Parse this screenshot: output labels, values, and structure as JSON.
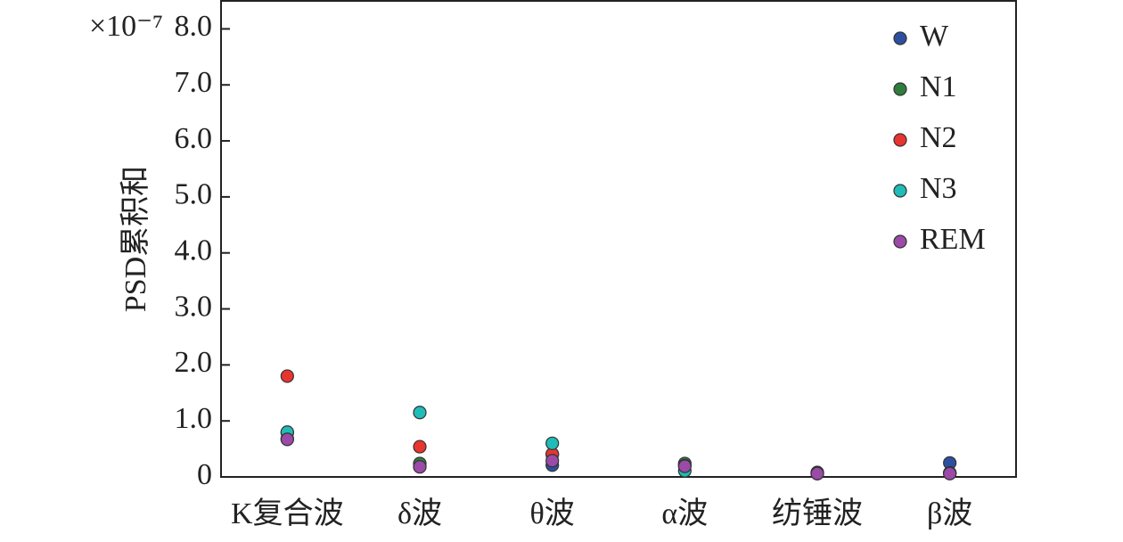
{
  "chart_data": {
    "type": "scatter",
    "y_label": "PSD累积和",
    "y_multiplier": "×10⁻⁷",
    "categories": [
      "K复合波",
      "δ波",
      "θ波",
      "α波",
      "纺锤波",
      "β波"
    ],
    "series": [
      {
        "name": "W",
        "color": "#2d4fa0",
        "values": [
          0.68,
          0.19,
          0.21,
          0.22,
          0.08,
          0.25
        ]
      },
      {
        "name": "N1",
        "color": "#2e7d3c",
        "values": [
          0.79,
          0.24,
          0.4,
          0.24,
          0.07,
          0.07
        ]
      },
      {
        "name": "N2",
        "color": "#e8352f",
        "values": [
          1.8,
          0.54,
          0.41,
          0.2,
          0.07,
          0.07
        ]
      },
      {
        "name": "N3",
        "color": "#1fbcb8",
        "values": [
          0.8,
          1.15,
          0.6,
          0.11,
          0.06,
          0.07
        ]
      },
      {
        "name": "REM",
        "color": "#9b4aa8",
        "values": [
          0.67,
          0.18,
          0.29,
          0.19,
          0.06,
          0.06
        ]
      }
    ],
    "ylim": [
      0,
      8.5
    ],
    "yticks": [
      0,
      {
        "value": 1,
        "label": "1.0"
      },
      {
        "value": 2,
        "label": "2.0"
      },
      {
        "value": 3,
        "label": "3.0"
      },
      {
        "value": 4,
        "label": "4.0"
      },
      {
        "value": 5,
        "label": "5.0"
      },
      {
        "value": 6,
        "label": "6.0"
      },
      {
        "value": 7,
        "label": "7.0"
      },
      {
        "value": 8,
        "label": "8.0"
      }
    ],
    "legend": "upper right"
  }
}
